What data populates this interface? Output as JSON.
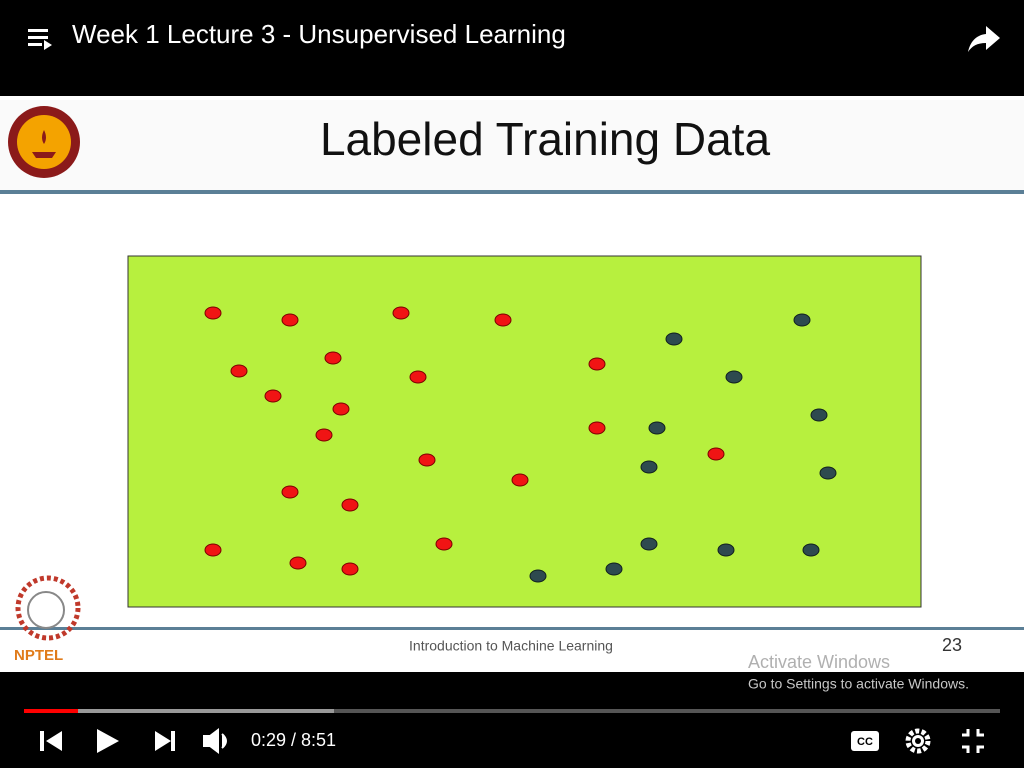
{
  "player": {
    "title": "Week 1 Lecture 3 - Unsupervised Learning",
    "time": "0:29 / 8:51"
  },
  "slide": {
    "title": "Labeled Training Data",
    "logo_text": "NPTEL",
    "footer": "Introduction to Machine Learning",
    "page_number": "23"
  },
  "watermark": {
    "title": "Activate Windows",
    "subtitle": "Go to Settings to activate Windows."
  }
}
